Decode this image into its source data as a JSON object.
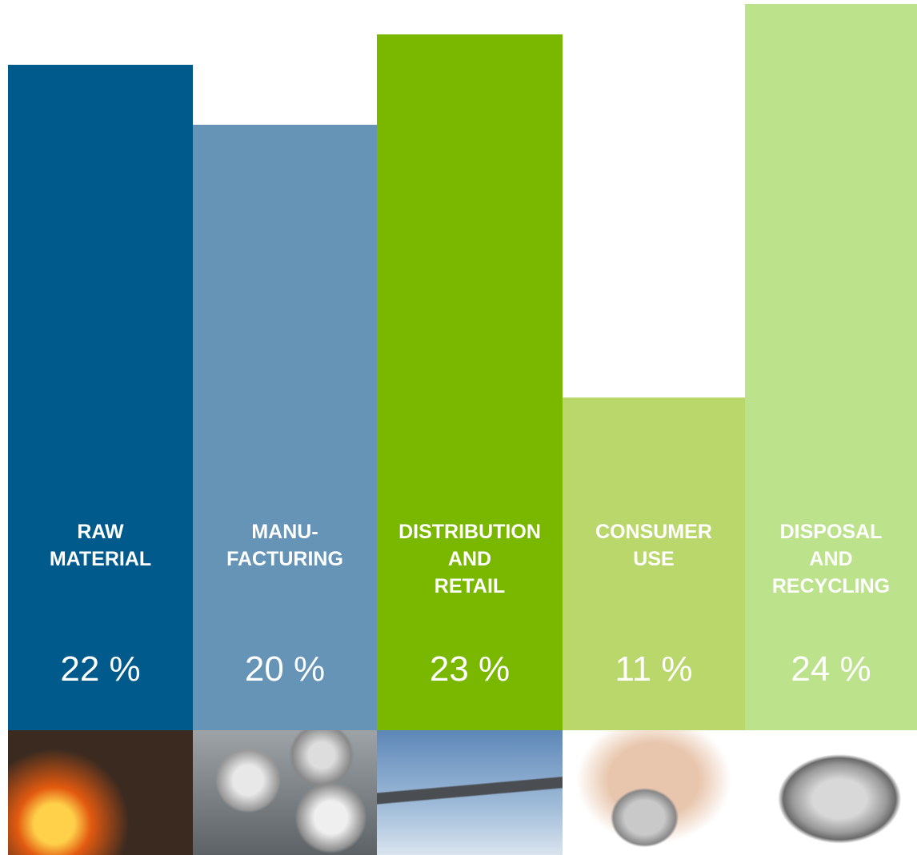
{
  "chart_data": {
    "type": "bar",
    "categories": [
      "RAW\nMATERIAL",
      "MANU-\nFACTURING",
      "DISTRIBUTION\nAND\nRETAIL",
      "CONSUMER\nUSE",
      "DISPOSAL\nAND\nRECYCLING"
    ],
    "values": [
      22,
      20,
      23,
      11,
      24
    ],
    "value_labels": [
      "22 %",
      "20 %",
      "23 %",
      "11 %",
      "24 %"
    ],
    "colors": [
      "#005a8c",
      "#6594b6",
      "#7ab800",
      "#b9d76a",
      "#bde28c"
    ]
  }
}
